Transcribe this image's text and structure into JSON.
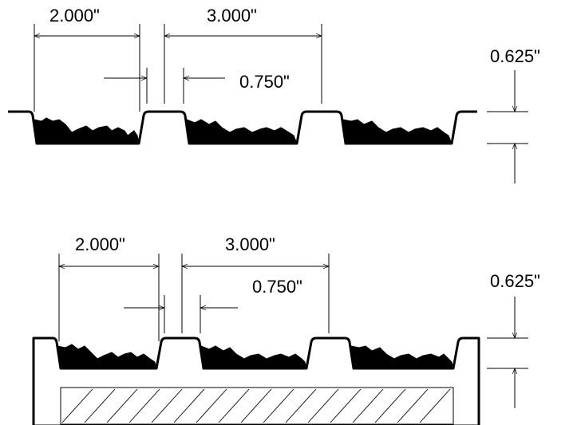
{
  "top_view": {
    "dim_pitch_small": "2.000\"",
    "dim_pitch_large": "3.000\"",
    "dim_gap": "0.750\"",
    "dim_height": "0.625\""
  },
  "bottom_view": {
    "dim_pitch_small": "2.000\"",
    "dim_pitch_large": "3.000\"",
    "dim_gap": "0.750\"",
    "dim_height": "0.625\""
  }
}
